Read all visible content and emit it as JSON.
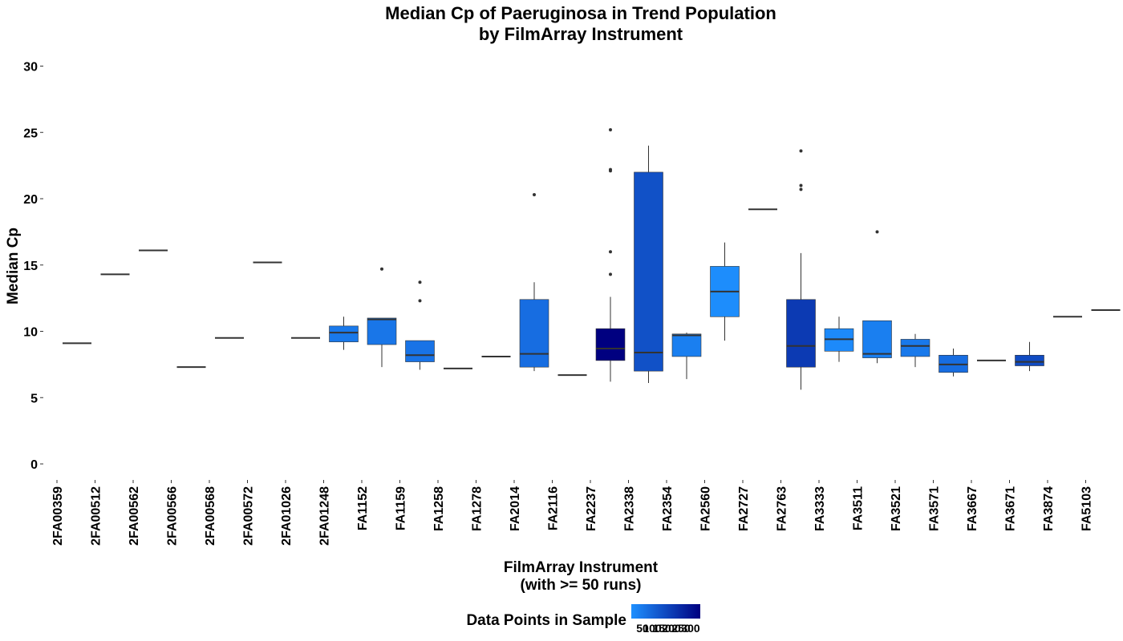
{
  "chart_data": {
    "type": "boxplot",
    "title": "Median Cp of Paeruginosa in Trend Population",
    "subtitle": "by FilmArray Instrument",
    "xlabel": "FilmArray Instrument",
    "xlabel_line2": "(with >= 50 runs)",
    "ylabel": "Median Cp",
    "ylim": [
      -1,
      30.5
    ],
    "yticks": [
      0,
      5,
      10,
      15,
      20,
      25,
      30
    ],
    "grid": false,
    "legend": {
      "title": "Data Points in Sample",
      "placement": "bottom",
      "ticks": [
        "50",
        "100",
        "150",
        "200",
        "250",
        "300"
      ],
      "color_low": "#1E90FF",
      "color_high": "#000080"
    },
    "categories": [
      "2FA00359",
      "2FA00512",
      "2FA00562",
      "2FA00566",
      "2FA00568",
      "2FA00572",
      "2FA01026",
      "2FA01248",
      "FA1152",
      "FA1159",
      "FA1258",
      "FA1278",
      "FA2014",
      "FA2116",
      "FA2237",
      "FA2338",
      "FA2354",
      "FA2560",
      "FA2727",
      "FA2763",
      "FA3333",
      "FA3511",
      "FA3521",
      "FA3571",
      "FA3667",
      "FA3671",
      "FA3874",
      "FA5103"
    ],
    "boxes": [
      {
        "q1": 9.1,
        "median": 9.1,
        "q3": 9.1,
        "lower": 9.1,
        "upper": 9.1,
        "outliers": [],
        "count": 50
      },
      {
        "q1": 14.3,
        "median": 14.3,
        "q3": 14.3,
        "lower": 14.3,
        "upper": 14.3,
        "outliers": [],
        "count": 50
      },
      {
        "q1": 16.1,
        "median": 16.1,
        "q3": 16.1,
        "lower": 16.1,
        "upper": 16.1,
        "outliers": [],
        "count": 50
      },
      {
        "q1": 7.3,
        "median": 7.3,
        "q3": 7.3,
        "lower": 7.3,
        "upper": 7.3,
        "outliers": [],
        "count": 50
      },
      {
        "q1": 9.5,
        "median": 9.5,
        "q3": 9.5,
        "lower": 9.5,
        "upper": 9.5,
        "outliers": [],
        "count": 50
      },
      {
        "q1": 15.2,
        "median": 15.2,
        "q3": 15.2,
        "lower": 15.2,
        "upper": 15.2,
        "outliers": [],
        "count": 50
      },
      {
        "q1": 9.5,
        "median": 9.5,
        "q3": 9.5,
        "lower": 9.5,
        "upper": 9.5,
        "outliers": [],
        "count": 50
      },
      {
        "q1": 9.2,
        "median": 9.9,
        "q3": 10.4,
        "lower": 8.6,
        "upper": 11.1,
        "outliers": [],
        "count": 90
      },
      {
        "q1": 9.0,
        "median": 10.9,
        "q3": 11.0,
        "lower": 7.3,
        "upper": 11.0,
        "outliers": [
          14.7
        ],
        "count": 95
      },
      {
        "q1": 7.7,
        "median": 8.2,
        "q3": 9.3,
        "lower": 7.1,
        "upper": 9.3,
        "outliers": [
          12.3,
          13.7
        ],
        "count": 100
      },
      {
        "q1": 7.2,
        "median": 7.2,
        "q3": 7.2,
        "lower": 7.2,
        "upper": 7.2,
        "outliers": [],
        "count": 50
      },
      {
        "q1": 8.1,
        "median": 8.1,
        "q3": 8.1,
        "lower": 8.1,
        "upper": 8.1,
        "outliers": [],
        "count": 50
      },
      {
        "q1": 7.3,
        "median": 8.3,
        "q3": 12.4,
        "lower": 7.0,
        "upper": 13.7,
        "outliers": [
          20.3
        ],
        "count": 110
      },
      {
        "q1": 6.7,
        "median": 6.7,
        "q3": 6.7,
        "lower": 6.7,
        "upper": 6.7,
        "outliers": [],
        "count": 50
      },
      {
        "q1": 7.8,
        "median": 8.7,
        "q3": 10.2,
        "lower": 6.2,
        "upper": 12.6,
        "outliers": [
          14.3,
          16.0,
          22.1,
          22.2,
          25.2
        ],
        "count": 300
      },
      {
        "q1": 7.0,
        "median": 8.4,
        "q3": 22.0,
        "lower": 6.1,
        "upper": 24.0,
        "outliers": [],
        "count": 160
      },
      {
        "q1": 8.1,
        "median": 9.7,
        "q3": 9.8,
        "lower": 6.4,
        "upper": 9.9,
        "outliers": [],
        "count": 80
      },
      {
        "q1": 11.1,
        "median": 13.0,
        "q3": 14.9,
        "lower": 9.3,
        "upper": 16.7,
        "outliers": [],
        "count": 55
      },
      {
        "q1": 19.2,
        "median": 19.2,
        "q3": 19.2,
        "lower": 19.2,
        "upper": 19.2,
        "outliers": [],
        "count": 50
      },
      {
        "q1": 7.3,
        "median": 8.9,
        "q3": 12.4,
        "lower": 5.6,
        "upper": 15.9,
        "outliers": [
          20.7,
          21.0,
          23.6
        ],
        "count": 200
      },
      {
        "q1": 8.5,
        "median": 9.4,
        "q3": 10.2,
        "lower": 7.7,
        "upper": 11.1,
        "outliers": [],
        "count": 60
      },
      {
        "q1": 8.0,
        "median": 8.3,
        "q3": 10.8,
        "lower": 7.6,
        "upper": 10.8,
        "outliers": [
          17.5
        ],
        "count": 80
      },
      {
        "q1": 8.1,
        "median": 8.9,
        "q3": 9.4,
        "lower": 7.3,
        "upper": 9.8,
        "outliers": [],
        "count": 90
      },
      {
        "q1": 6.9,
        "median": 7.5,
        "q3": 8.2,
        "lower": 6.6,
        "upper": 8.7,
        "outliers": [],
        "count": 110
      },
      {
        "q1": 7.8,
        "median": 7.8,
        "q3": 7.8,
        "lower": 7.8,
        "upper": 7.8,
        "outliers": [],
        "count": 50
      },
      {
        "q1": 7.4,
        "median": 7.7,
        "q3": 8.2,
        "lower": 7.0,
        "upper": 9.2,
        "outliers": [],
        "count": 170
      },
      {
        "q1": 11.1,
        "median": 11.1,
        "q3": 11.1,
        "lower": 11.1,
        "upper": 11.1,
        "outliers": [],
        "count": 50
      },
      {
        "q1": 11.6,
        "median": 11.6,
        "q3": 11.6,
        "lower": 11.6,
        "upper": 11.6,
        "outliers": [],
        "count": 50
      }
    ]
  }
}
